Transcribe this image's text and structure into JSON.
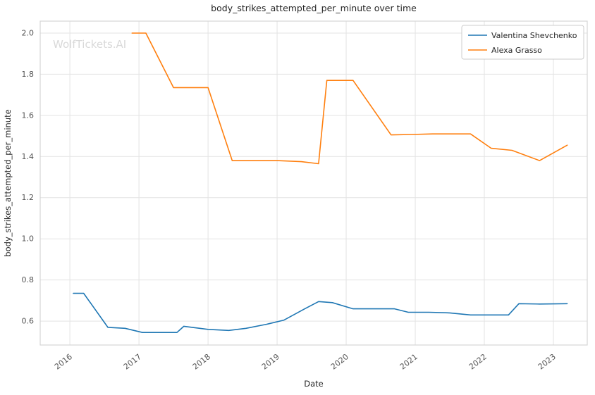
{
  "chart_data": {
    "type": "line",
    "title": "body_strikes_attempted_per_minute over time",
    "xlabel": "Date",
    "ylabel": "body_strikes_attempted_per_minute",
    "watermark": "WolfTickets.AI",
    "grid": true,
    "legend_position": "top-right",
    "xlim": [
      2015.57,
      2023.49
    ],
    "ylim": [
      0.484,
      2.058
    ],
    "xticks": [
      2016,
      2017,
      2018,
      2019,
      2020,
      2021,
      2022,
      2023
    ],
    "yticks": [
      0.6,
      0.8,
      1.0,
      1.2,
      1.4,
      1.6,
      1.8,
      2.0
    ],
    "colors": {
      "grid": "#e3e3e3",
      "plot_border": "#d5d5d5",
      "tick_text": "#555555",
      "title_text": "#262626",
      "watermark_text": "#d9d9d9",
      "legend_border": "#cccccc"
    },
    "series": [
      {
        "name": "Valentina Shevchenko",
        "color": "#1f77b4",
        "points": [
          [
            2016.05,
            0.735
          ],
          [
            2016.2,
            0.735
          ],
          [
            2016.55,
            0.57
          ],
          [
            2016.8,
            0.565
          ],
          [
            2017.05,
            0.545
          ],
          [
            2017.3,
            0.545
          ],
          [
            2017.55,
            0.545
          ],
          [
            2017.65,
            0.575
          ],
          [
            2018.0,
            0.56
          ],
          [
            2018.3,
            0.555
          ],
          [
            2018.55,
            0.565
          ],
          [
            2018.85,
            0.585
          ],
          [
            2019.1,
            0.605
          ],
          [
            2019.4,
            0.66
          ],
          [
            2019.6,
            0.695
          ],
          [
            2019.8,
            0.69
          ],
          [
            2020.1,
            0.66
          ],
          [
            2020.4,
            0.66
          ],
          [
            2020.7,
            0.66
          ],
          [
            2020.9,
            0.643
          ],
          [
            2021.2,
            0.643
          ],
          [
            2021.5,
            0.64
          ],
          [
            2021.8,
            0.63
          ],
          [
            2022.1,
            0.63
          ],
          [
            2022.35,
            0.63
          ],
          [
            2022.5,
            0.685
          ],
          [
            2022.8,
            0.683
          ],
          [
            2023.2,
            0.685
          ]
        ]
      },
      {
        "name": "Alexa Grasso",
        "color": "#ff7f0e",
        "points": [
          [
            2016.9,
            2.0
          ],
          [
            2017.1,
            2.0
          ],
          [
            2017.5,
            1.735
          ],
          [
            2017.75,
            1.735
          ],
          [
            2018.0,
            1.735
          ],
          [
            2018.35,
            1.38
          ],
          [
            2018.7,
            1.38
          ],
          [
            2019.0,
            1.38
          ],
          [
            2019.35,
            1.375
          ],
          [
            2019.6,
            1.365
          ],
          [
            2019.72,
            1.77
          ],
          [
            2020.1,
            1.77
          ],
          [
            2020.65,
            1.505
          ],
          [
            2020.95,
            1.507
          ],
          [
            2021.25,
            1.51
          ],
          [
            2021.55,
            1.51
          ],
          [
            2021.8,
            1.51
          ],
          [
            2022.1,
            1.44
          ],
          [
            2022.4,
            1.43
          ],
          [
            2022.8,
            1.38
          ],
          [
            2023.2,
            1.455
          ]
        ]
      }
    ]
  }
}
